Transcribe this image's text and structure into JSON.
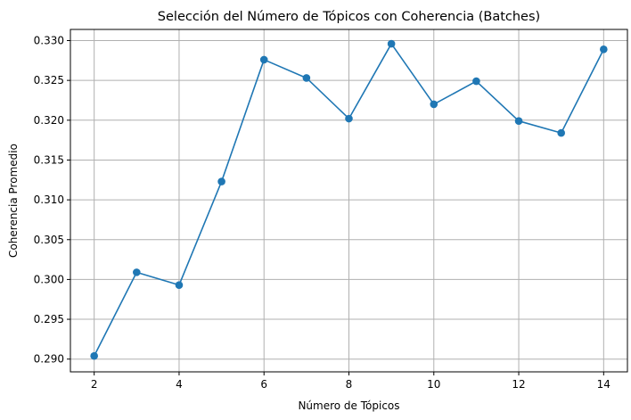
{
  "chart_data": {
    "type": "line",
    "title": "Selección del Número de Tópicos con Coherencia (Batches)",
    "xlabel": "Número de Tópicos",
    "ylabel": "Coherencia Promedio",
    "x": [
      2,
      3,
      4,
      5,
      6,
      7,
      8,
      9,
      10,
      11,
      12,
      13,
      14
    ],
    "series": [
      {
        "values": [
          0.2904,
          0.3009,
          0.2993,
          0.3123,
          0.3276,
          0.3253,
          0.3202,
          0.3296,
          0.322,
          0.3249,
          0.3199,
          0.3184,
          0.3289
        ],
        "color": "#1f77b4",
        "marker": "circle"
      }
    ],
    "xlim": [
      1.44,
      14.56
    ],
    "ylim": [
      0.2884,
      0.3314
    ],
    "xticks": [
      2,
      4,
      6,
      8,
      10,
      12,
      14
    ],
    "xtick_labels": [
      "2",
      "4",
      "6",
      "8",
      "10",
      "12",
      "14"
    ],
    "yticks": [
      0.29,
      0.295,
      0.3,
      0.305,
      0.31,
      0.315,
      0.32,
      0.325,
      0.33
    ],
    "ytick_labels": [
      "0.290",
      "0.295",
      "0.300",
      "0.305",
      "0.310",
      "0.315",
      "0.320",
      "0.325",
      "0.330"
    ],
    "grid": true,
    "legend": false
  }
}
